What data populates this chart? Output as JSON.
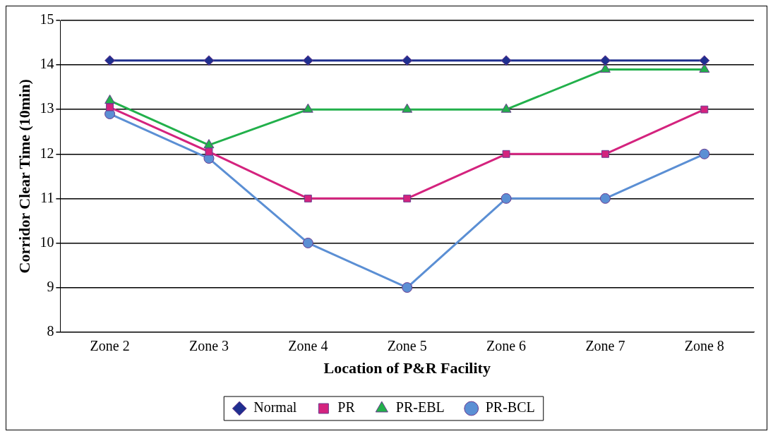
{
  "chart_data": {
    "type": "line",
    "xlabel": "Location of P&R Facility",
    "ylabel": "Corridor Clear Time (10min)",
    "categories": [
      "Zone 2",
      "Zone 3",
      "Zone 4",
      "Zone 5",
      "Zone 6",
      "Zone 7",
      "Zone 8"
    ],
    "series": [
      {
        "name": "Normal",
        "color": "#1f2f8f",
        "marker": "diamond",
        "values": [
          14.1,
          14.1,
          14.1,
          14.1,
          14.1,
          14.1,
          14.1
        ]
      },
      {
        "name": "PR",
        "color": "#d4237e",
        "marker": "square",
        "values": [
          13.05,
          12.05,
          11,
          11,
          12,
          12,
          13
        ]
      },
      {
        "name": "PR-EBL",
        "color": "#22b04b",
        "marker": "triangle",
        "values": [
          13.2,
          12.2,
          13,
          13,
          13,
          13.9,
          13.9
        ]
      },
      {
        "name": "PR-BCL",
        "color": "#5b8fd4",
        "marker": "circle",
        "values": [
          12.9,
          11.9,
          10,
          9,
          11,
          11,
          12
        ]
      }
    ],
    "ylim": [
      8,
      15
    ],
    "yticks": [
      8,
      9,
      10,
      11,
      12,
      13,
      14,
      15
    ],
    "grid": "y",
    "legend": "bottom",
    "line_style": "solid"
  }
}
